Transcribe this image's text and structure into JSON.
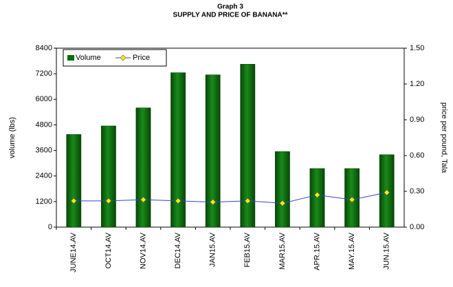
{
  "chart_data": {
    "type": "bar_line",
    "title": "Graph 3",
    "subtitle": "SUPPLY AND PRICE OF BANANA**",
    "ylabel": "volume (lbs)",
    "y2label": "price per pound, Tala",
    "categories": [
      "JUNE14.AV",
      "OCT14.AV",
      "NOV14.AV",
      "DEC14.AV",
      "JAN15.AV",
      "FEB15.AV",
      "MAR15.AV",
      "APR.15.AV",
      "MAY.15.AV",
      "JUN.15.AV"
    ],
    "series": [
      {
        "name": "Volume",
        "color": "#0b6b0b",
        "values": [
          4350,
          4750,
          5600,
          7250,
          7150,
          7650,
          3550,
          2750,
          2750,
          3400
        ]
      },
      {
        "name": "Price",
        "color": "#3344cc",
        "axis": "y2",
        "values": [
          0.22,
          0.22,
          0.23,
          0.22,
          0.21,
          0.22,
          0.2,
          0.27,
          0.23,
          0.29
        ]
      }
    ],
    "ylim": [
      0,
      8400
    ],
    "yticks": [
      0,
      1200,
      2400,
      3600,
      4800,
      6000,
      7200,
      8400
    ],
    "y2lim": [
      0,
      1.5
    ],
    "y2ticks": [
      {
        "value": 0,
        "label": "0.00"
      },
      {
        "value": 0.3,
        "label": "0.30"
      },
      {
        "value": 0.6,
        "label": "0.60"
      },
      {
        "value": 0.9,
        "label": "0.90"
      },
      {
        "value": 1.2,
        "label": "1.20"
      },
      {
        "value": 1.5,
        "label": "1.50"
      }
    ],
    "legend": "upper left"
  }
}
